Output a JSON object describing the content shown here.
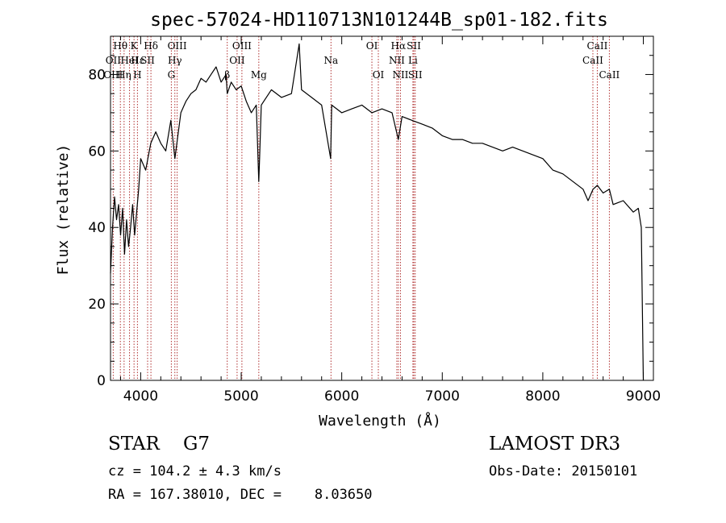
{
  "chart_data": {
    "type": "line",
    "title": "spec-57024-HD110713N101244B_sp01-182.fits",
    "xlabel": "Wavelength (Å)",
    "ylabel": "Flux (relative)",
    "xlim": [
      3700,
      9100
    ],
    "ylim": [
      0,
      90
    ],
    "xticks": [
      4000,
      5000,
      6000,
      7000,
      8000,
      9000
    ],
    "yticks": [
      0,
      20,
      40,
      60,
      80
    ],
    "series": [
      {
        "name": "flux",
        "x": [
          3700,
          3720,
          3740,
          3760,
          3780,
          3800,
          3820,
          3840,
          3860,
          3880,
          3900,
          3920,
          3940,
          3960,
          3980,
          4000,
          4050,
          4100,
          4150,
          4200,
          4250,
          4300,
          4340,
          4400,
          4450,
          4500,
          4550,
          4600,
          4650,
          4700,
          4750,
          4800,
          4850,
          4861,
          4900,
          4950,
          5000,
          5050,
          5100,
          5150,
          5175,
          5183,
          5200,
          5300,
          5400,
          5500,
          5577,
          5600,
          5700,
          5800,
          5890,
          5900,
          6000,
          6100,
          6200,
          6300,
          6400,
          6500,
          6563,
          6600,
          6700,
          6800,
          6900,
          7000,
          7100,
          7200,
          7300,
          7400,
          7500,
          7600,
          7700,
          7800,
          7900,
          8000,
          8100,
          8200,
          8300,
          8400,
          8450,
          8500,
          8542,
          8600,
          8662,
          8700,
          8800,
          8900,
          8950,
          8980,
          9000
        ],
        "y": [
          28,
          40,
          48,
          42,
          46,
          38,
          45,
          33,
          42,
          35,
          40,
          46,
          38,
          44,
          50,
          58,
          55,
          62,
          65,
          62,
          60,
          68,
          58,
          70,
          73,
          75,
          76,
          79,
          78,
          80,
          82,
          78,
          80,
          75,
          78,
          76,
          77,
          73,
          70,
          72,
          52,
          58,
          72,
          76,
          74,
          75,
          88,
          76,
          74,
          72,
          58,
          72,
          70,
          71,
          72,
          70,
          71,
          70,
          63,
          69,
          68,
          67,
          66,
          64,
          63,
          63,
          62,
          62,
          61,
          60,
          61,
          60,
          59,
          58,
          55,
          54,
          52,
          50,
          47,
          50,
          51,
          49,
          50,
          46,
          47,
          44,
          45,
          40,
          0
        ]
      }
    ],
    "line_labels": [
      {
        "name": "Hθ",
        "x": 3798,
        "row": 0
      },
      {
        "name": "OII",
        "x": 3727,
        "row": 1
      },
      {
        "name": "OIII",
        "x": 3727,
        "row": 2
      },
      {
        "name": "Hη",
        "x": 3835,
        "row": 2
      },
      {
        "name": "HeI",
        "x": 3889,
        "row": 1
      },
      {
        "name": "K",
        "x": 3934,
        "row": 0
      },
      {
        "name": "Hε",
        "x": 3970,
        "row": 1
      },
      {
        "name": "H",
        "x": 3968,
        "row": 2
      },
      {
        "name": "SII",
        "x": 4069,
        "row": 1
      },
      {
        "name": "Hδ",
        "x": 4102,
        "row": 0
      },
      {
        "name": "OIII",
        "x": 4363,
        "row": 0
      },
      {
        "name": "Hγ",
        "x": 4340,
        "row": 1
      },
      {
        "name": "G",
        "x": 4305,
        "row": 2
      },
      {
        "name": "OIII",
        "x": 5007,
        "row": 0
      },
      {
        "name": "OII",
        "x": 4959,
        "row": 1
      },
      {
        "name": "β",
        "x": 4861,
        "row": 2
      },
      {
        "name": "Mg",
        "x": 5175,
        "row": 2
      },
      {
        "name": "Na",
        "x": 5893,
        "row": 1
      },
      {
        "name": "OI",
        "x": 6300,
        "row": 0
      },
      {
        "name": "OI",
        "x": 6364,
        "row": 2
      },
      {
        "name": "Hα",
        "x": 6563,
        "row": 0
      },
      {
        "name": "NII",
        "x": 6548,
        "row": 1
      },
      {
        "name": "NII",
        "x": 6584,
        "row": 2
      },
      {
        "name": "SII",
        "x": 6717,
        "row": 0
      },
      {
        "name": "Li",
        "x": 6708,
        "row": 1
      },
      {
        "name": "SII",
        "x": 6731,
        "row": 2
      },
      {
        "name": "CaII",
        "x": 8542,
        "row": 0
      },
      {
        "name": "CaII",
        "x": 8498,
        "row": 1
      },
      {
        "name": "CaII",
        "x": 8662,
        "row": 2
      }
    ],
    "line_positions": [
      3727,
      3798,
      3835,
      3889,
      3934,
      3968,
      4069,
      4102,
      4305,
      4340,
      4363,
      4861,
      4959,
      5007,
      5175,
      5893,
      6300,
      6364,
      6548,
      6563,
      6584,
      6708,
      6717,
      6731,
      8498,
      8542,
      8662
    ]
  },
  "footer": {
    "object_class": "STAR    G7",
    "survey": "LAMOST DR3",
    "cz": "cz = 104.2 ± 4.3 km/s",
    "obs_date": "Obs-Date: 20150101",
    "radec": "RA = 167.38010, DEC =    8.03650"
  },
  "colors": {
    "spectrum": "#000000",
    "line_marker": "#b03030"
  }
}
